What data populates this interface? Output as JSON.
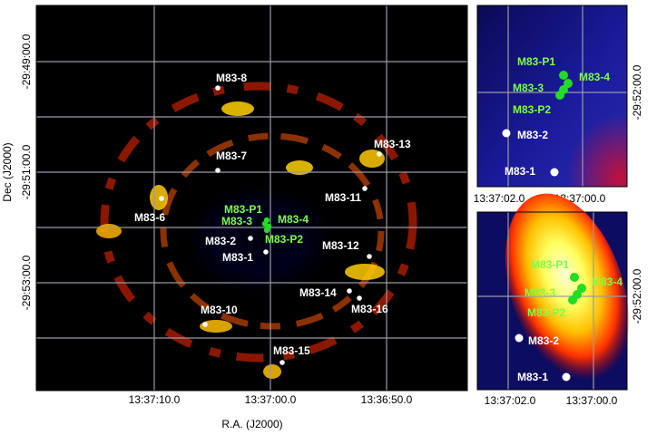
{
  "axes": {
    "x_label": "R.A. (J2000)",
    "y_label": "Dec (J2000)",
    "main_x_ticks": [
      "13:37:10.0",
      "13:37:00.0",
      "13:36:50.0"
    ],
    "main_y_ticks": [
      "-29:49:00.0",
      "-29:51:00.0",
      "-29:53:00.0"
    ],
    "inset_x_ticks": [
      "13:37:02.0",
      "13:37:00.0"
    ],
    "inset_y_tick": "-29:52:00.0"
  },
  "main_sources": [
    {
      "label": "M83-8",
      "color": "#ffffff"
    },
    {
      "label": "M83-7",
      "color": "#ffffff"
    },
    {
      "label": "M83-13",
      "color": "#ffffff"
    },
    {
      "label": "M83-11",
      "color": "#ffffff"
    },
    {
      "label": "M83-6",
      "color": "#ffffff"
    },
    {
      "label": "M83-P1",
      "color": "#7cff4a"
    },
    {
      "label": "M83-3",
      "color": "#7cff4a"
    },
    {
      "label": "M83-4",
      "color": "#7cff4a"
    },
    {
      "label": "M83-P2",
      "color": "#7cff4a"
    },
    {
      "label": "M83-2",
      "color": "#ffffff"
    },
    {
      "label": "M83-1",
      "color": "#ffffff"
    },
    {
      "label": "M83-12",
      "color": "#ffffff"
    },
    {
      "label": "M83-14",
      "color": "#ffffff"
    },
    {
      "label": "M83-16",
      "color": "#ffffff"
    },
    {
      "label": "M83-10",
      "color": "#ffffff"
    },
    {
      "label": "M83-15",
      "color": "#ffffff"
    }
  ],
  "inset_top_sources": [
    "M83-P1",
    "M83-4",
    "M83-3",
    "M83-P2",
    "M83-2",
    "M83-1"
  ],
  "inset_bottom_sources": [
    "M83-P1",
    "M83-4",
    "M83-3",
    "M83-P2",
    "M83-2",
    "M83-1"
  ],
  "colors": {
    "green_marker": "#22dd22",
    "green_label": "#7cff4a",
    "white_marker": "#ffffff",
    "grid": "#9a9aa8"
  }
}
